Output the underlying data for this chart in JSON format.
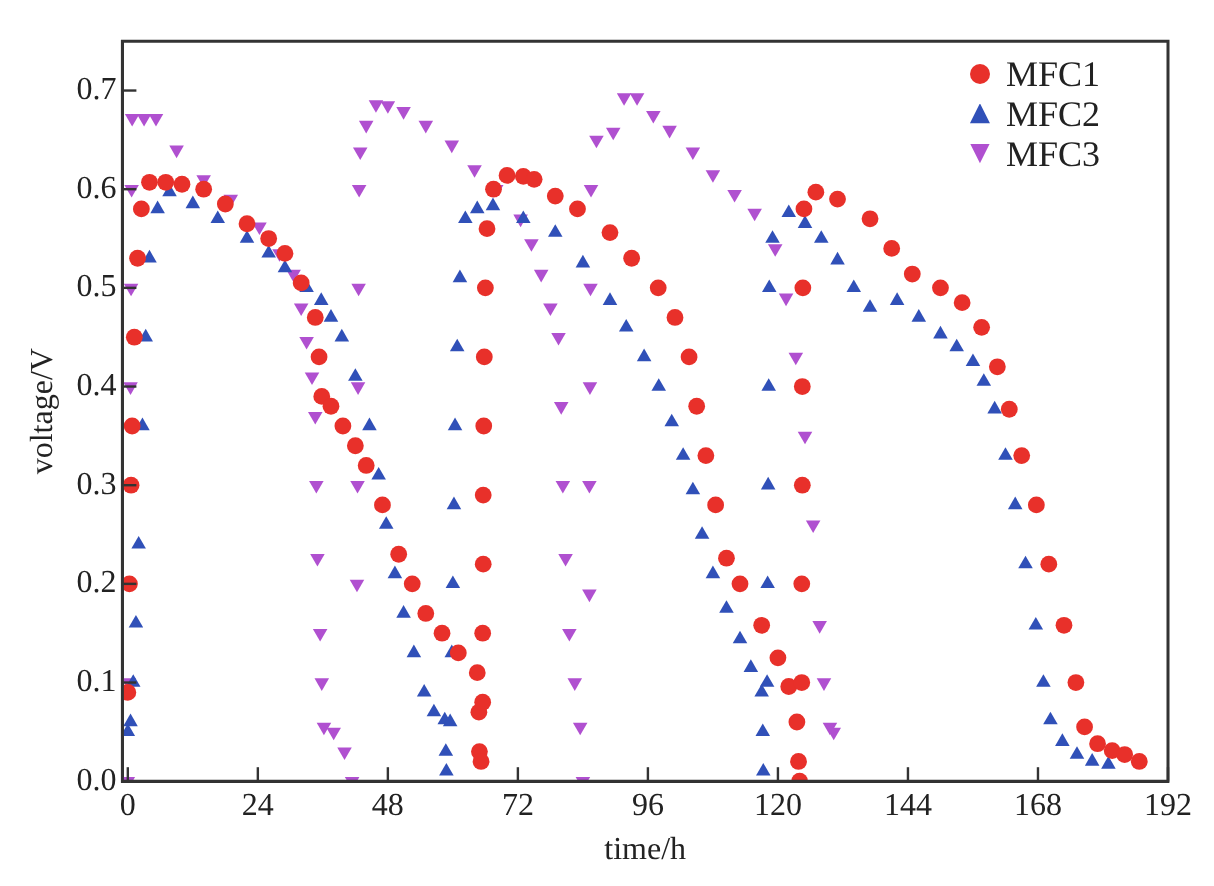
{
  "chart_data": {
    "type": "scatter",
    "xlabel": "time/h",
    "ylabel": "voltage/V",
    "xlim": [
      -1,
      192
    ],
    "xticks": [
      0,
      24,
      48,
      72,
      96,
      120,
      144,
      168,
      192
    ],
    "ylim": [
      0,
      0.75
    ],
    "yticks": [
      {
        "value": 0,
        "label": "0.0"
      },
      0.1,
      0.2,
      0.3,
      0.4,
      0.5,
      0.6,
      0.7
    ],
    "grid": false,
    "legend": "top right",
    "series": [
      {
        "name": "MFC1",
        "color": "#e8302a",
        "marker": "circle",
        "x": [
          0,
          0.3,
          0.6,
          0.8,
          1.2,
          1.8,
          2.5,
          4,
          7,
          10,
          14,
          18,
          22,
          26,
          29,
          32,
          34.6,
          35.3,
          35.8,
          37.5,
          39.7,
          42,
          44,
          47,
          50,
          52.5,
          55,
          58,
          61,
          64.5,
          64.8,
          64.9,
          65.2,
          65.5,
          65.5,
          65.6,
          65.6,
          65.7,
          65.8,
          66,
          66.3,
          67.5,
          70,
          73,
          75,
          78.9,
          83,
          89,
          93,
          97.9,
          101,
          103.6,
          105,
          106.7,
          108.5,
          110.5,
          113,
          117,
          120,
          122,
          123.5,
          123.8,
          124,
          124.4,
          124.4,
          124.5,
          124.5,
          124.6,
          124.8,
          127,
          131,
          137,
          141,
          144.8,
          150,
          154,
          157.6,
          160.5,
          162.7,
          165,
          167.7,
          170,
          172.8,
          175,
          176.6,
          179,
          181.7,
          184,
          186.7
        ],
        "values": [
          0.09,
          0.2,
          0.3,
          0.36,
          0.45,
          0.53,
          0.58,
          0.607,
          0.607,
          0.605,
          0.6,
          0.585,
          0.565,
          0.55,
          0.535,
          0.505,
          0.47,
          0.43,
          0.39,
          0.38,
          0.36,
          0.34,
          0.32,
          0.28,
          0.23,
          0.2,
          0.17,
          0.15,
          0.13,
          0.11,
          0.07,
          0.03,
          0.02,
          0.08,
          0.15,
          0.22,
          0.29,
          0.36,
          0.43,
          0.5,
          0.56,
          0.6,
          0.614,
          0.613,
          0.61,
          0.593,
          0.58,
          0.556,
          0.53,
          0.5,
          0.47,
          0.43,
          0.38,
          0.33,
          0.28,
          0.226,
          0.2,
          0.158,
          0.125,
          0.096,
          0.06,
          0.02,
          0,
          0.1,
          0.2,
          0.3,
          0.4,
          0.5,
          0.58,
          0.597,
          0.59,
          0.57,
          0.54,
          0.514,
          0.5,
          0.485,
          0.46,
          0.42,
          0.377,
          0.33,
          0.28,
          0.22,
          0.158,
          0.1,
          0.055,
          0.038,
          0.031,
          0.027,
          0.02
        ]
      },
      {
        "name": "MFC2",
        "color": "#3050b8",
        "marker": "triangle",
        "x": [
          0,
          0.5,
          1,
          1.5,
          2,
          2.7,
          3.3,
          4,
          5.5,
          7.7,
          12,
          16.6,
          22,
          26,
          29,
          33,
          35.7,
          37.5,
          39.5,
          42,
          44.6,
          46.3,
          47.7,
          49.3,
          50.9,
          52.8,
          54.7,
          56.5,
          58.5,
          58.7,
          58.8,
          59.5,
          59.8,
          60,
          60.2,
          60.4,
          60.8,
          61.3,
          62.3,
          64.5,
          67.4,
          73,
          78.9,
          84,
          89,
          92,
          95.3,
          98,
          100.4,
          102.5,
          104.3,
          106,
          108,
          110.5,
          113,
          115,
          117,
          117.2,
          117.3,
          118,
          118.1,
          118.2,
          118.3,
          118.4,
          119,
          122,
          125,
          128,
          131,
          134,
          137,
          142,
          146,
          150,
          153,
          156,
          158,
          160,
          162,
          163.8,
          165.7,
          167.6,
          169,
          170.3,
          172.5,
          175.2,
          178,
          181
        ],
        "values": [
          0.05,
          0.06,
          0.1,
          0.16,
          0.24,
          0.36,
          0.45,
          0.53,
          0.58,
          0.597,
          0.585,
          0.57,
          0.55,
          0.535,
          0.52,
          0.5,
          0.487,
          0.47,
          0.45,
          0.41,
          0.36,
          0.31,
          0.26,
          0.21,
          0.17,
          0.13,
          0.09,
          0.07,
          0.062,
          0.03,
          0.01,
          0.06,
          0.13,
          0.2,
          0.28,
          0.36,
          0.44,
          0.51,
          0.57,
          0.58,
          0.583,
          0.57,
          0.556,
          0.525,
          0.487,
          0.46,
          0.43,
          0.4,
          0.364,
          0.33,
          0.295,
          0.25,
          0.21,
          0.175,
          0.144,
          0.115,
          0.09,
          0.05,
          0.01,
          0.1,
          0.2,
          0.3,
          0.4,
          0.5,
          0.55,
          0.576,
          0.565,
          0.55,
          0.528,
          0.5,
          0.48,
          0.487,
          0.47,
          0.453,
          0.44,
          0.425,
          0.405,
          0.377,
          0.33,
          0.28,
          0.22,
          0.158,
          0.1,
          0.062,
          0.04,
          0.027,
          0.02,
          0.017
        ]
      },
      {
        "name": "MFC3",
        "color": "#b050d0",
        "marker": "triangle-down",
        "x": [
          0,
          0.2,
          0.5,
          0.6,
          0.7,
          0.8,
          3,
          5.2,
          9,
          14,
          19,
          24.3,
          28,
          30.6,
          32,
          33,
          34,
          34.6,
          34.8,
          35,
          35.5,
          35.8,
          36.2,
          38,
          40,
          41.4,
          42.3,
          42.4,
          42.5,
          42.6,
          42.7,
          42.9,
          44,
          45.8,
          48,
          50.9,
          55,
          59.8,
          64,
          68,
          72.5,
          74.5,
          76.3,
          78,
          79.5,
          80,
          80.3,
          80.8,
          81.5,
          82.5,
          83.5,
          84,
          85.2,
          85.2,
          85.3,
          85.4,
          85.5,
          86.5,
          89.6,
          91.6,
          94,
          97,
          100,
          104.3,
          108,
          112,
          115.7,
          119.5,
          121.5,
          123.3,
          125,
          126.5,
          127.7,
          128.5,
          129.6,
          130.3
        ],
        "values": [
          0,
          0.1,
          0.4,
          0.5,
          0.6,
          0.672,
          0.672,
          0.672,
          0.64,
          0.61,
          0.59,
          0.562,
          0.535,
          0.514,
          0.48,
          0.446,
          0.41,
          0.37,
          0.3,
          0.226,
          0.15,
          0.1,
          0.055,
          0.05,
          0.03,
          0,
          0.2,
          0.3,
          0.4,
          0.5,
          0.6,
          0.638,
          0.665,
          0.686,
          0.685,
          0.679,
          0.665,
          0.645,
          0.62,
          0.6,
          0.57,
          0.545,
          0.514,
          0.48,
          0.45,
          0.38,
          0.3,
          0.226,
          0.15,
          0.1,
          0.055,
          0,
          0.19,
          0.3,
          0.4,
          0.5,
          0.6,
          0.65,
          0.658,
          0.693,
          0.693,
          0.675,
          0.66,
          0.638,
          0.615,
          0.595,
          0.576,
          0.54,
          0.49,
          0.43,
          0.35,
          0.26,
          0.158,
          0.1,
          0.055,
          0.05
        ]
      }
    ]
  }
}
